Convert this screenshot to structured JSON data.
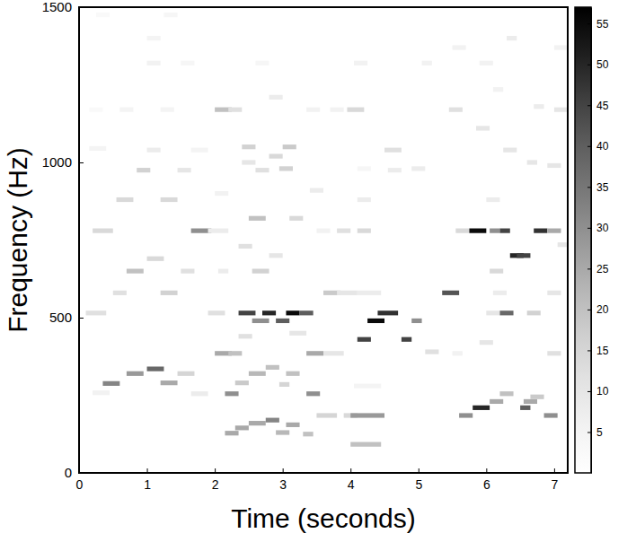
{
  "chart_data": {
    "type": "heatmap",
    "x_label": "Time (seconds)",
    "y_label": "Frequency (Hz)",
    "xlim": [
      0,
      7.2
    ],
    "ylim": [
      0,
      1500
    ],
    "xticks": [
      0,
      1,
      2,
      3,
      4,
      5,
      6,
      7
    ],
    "yticks": [
      0,
      500,
      1000,
      1500
    ],
    "freq_bin": 15,
    "colorbar": {
      "range": [
        0,
        57
      ],
      "ticks": [
        5,
        10,
        15,
        20,
        25,
        30,
        35,
        40,
        45,
        50,
        55
      ]
    },
    "cells": [
      [
        0.2,
        0.45,
        258,
        6
      ],
      [
        0.1,
        0.4,
        515,
        12
      ],
      [
        0.2,
        0.5,
        780,
        14
      ],
      [
        0.15,
        0.4,
        1045,
        5
      ],
      [
        0.15,
        0.35,
        1170,
        3
      ],
      [
        0.25,
        0.45,
        1475,
        3
      ],
      [
        0.35,
        0.6,
        288,
        32
      ],
      [
        0.5,
        0.7,
        580,
        12
      ],
      [
        0.55,
        0.8,
        880,
        14
      ],
      [
        0.6,
        0.8,
        1170,
        5
      ],
      [
        0.7,
        0.95,
        320,
        28
      ],
      [
        0.7,
        0.95,
        650,
        20
      ],
      [
        0.85,
        1.05,
        975,
        16
      ],
      [
        1.0,
        1.25,
        335,
        38
      ],
      [
        1.0,
        1.25,
        690,
        14
      ],
      [
        1.0,
        1.2,
        1040,
        8
      ],
      [
        1.0,
        1.2,
        1320,
        6
      ],
      [
        1.0,
        1.2,
        1400,
        5
      ],
      [
        1.2,
        1.45,
        290,
        25
      ],
      [
        1.2,
        1.45,
        580,
        16
      ],
      [
        1.2,
        1.45,
        880,
        14
      ],
      [
        1.2,
        1.4,
        1170,
        5
      ],
      [
        1.25,
        1.45,
        1475,
        4
      ],
      [
        1.45,
        1.7,
        320,
        15
      ],
      [
        1.5,
        1.7,
        650,
        12
      ],
      [
        1.45,
        1.65,
        975,
        10
      ],
      [
        1.5,
        1.7,
        1320,
        4
      ],
      [
        1.65,
        1.9,
        255,
        8
      ],
      [
        1.65,
        1.95,
        780,
        30
      ],
      [
        1.9,
        2.2,
        780,
        8
      ],
      [
        1.65,
        1.9,
        1040,
        5
      ],
      [
        2.0,
        2.25,
        385,
        25
      ],
      [
        2.0,
        2.25,
        1170,
        20
      ],
      [
        2.05,
        2.2,
        650,
        8
      ],
      [
        1.9,
        2.15,
        515,
        12
      ],
      [
        2.0,
        2.2,
        900,
        6
      ],
      [
        2.2,
        2.4,
        385,
        20
      ],
      [
        2.2,
        2.4,
        1170,
        12
      ],
      [
        2.15,
        2.35,
        255,
        30
      ],
      [
        2.15,
        2.35,
        128,
        25
      ],
      [
        2.3,
        2.5,
        145,
        25
      ],
      [
        2.3,
        2.5,
        290,
        18
      ],
      [
        2.35,
        2.6,
        515,
        45
      ],
      [
        2.35,
        2.55,
        440,
        12
      ],
      [
        2.35,
        2.55,
        730,
        12
      ],
      [
        2.4,
        2.6,
        1000,
        10
      ],
      [
        2.4,
        2.6,
        1050,
        16
      ],
      [
        2.5,
        2.75,
        160,
        25
      ],
      [
        2.5,
        2.75,
        320,
        22
      ],
      [
        2.55,
        2.8,
        490,
        30
      ],
      [
        2.55,
        2.8,
        650,
        16
      ],
      [
        2.5,
        2.75,
        820,
        20
      ],
      [
        2.6,
        2.8,
        975,
        12
      ],
      [
        2.6,
        2.8,
        1320,
        4
      ],
      [
        2.7,
        2.9,
        515,
        50
      ],
      [
        2.75,
        2.95,
        170,
        32
      ],
      [
        2.75,
        2.95,
        340,
        20
      ],
      [
        2.8,
        3.0,
        1020,
        14
      ],
      [
        2.8,
        3.0,
        1210,
        8
      ],
      [
        2.8,
        3.0,
        700,
        10
      ],
      [
        2.9,
        3.1,
        490,
        40
      ],
      [
        2.9,
        3.1,
        130,
        22
      ],
      [
        2.95,
        3.1,
        285,
        15
      ],
      [
        2.95,
        3.15,
        980,
        16
      ],
      [
        3.0,
        3.2,
        1050,
        18
      ],
      [
        3.05,
        3.25,
        515,
        55
      ],
      [
        3.05,
        3.25,
        155,
        25
      ],
      [
        3.05,
        3.25,
        320,
        20
      ],
      [
        3.1,
        3.3,
        820,
        14
      ],
      [
        3.1,
        3.35,
        450,
        10
      ],
      [
        3.25,
        3.45,
        515,
        40
      ],
      [
        3.3,
        3.45,
        125,
        20
      ],
      [
        3.35,
        3.55,
        255,
        30
      ],
      [
        3.35,
        3.6,
        385,
        25
      ],
      [
        3.4,
        3.6,
        910,
        8
      ],
      [
        3.35,
        3.55,
        1170,
        6
      ],
      [
        3.5,
        3.7,
        780,
        6
      ],
      [
        3.5,
        3.8,
        185,
        15
      ],
      [
        3.6,
        3.9,
        385,
        10
      ],
      [
        3.6,
        3.85,
        580,
        18
      ],
      [
        3.7,
        3.9,
        1170,
        6
      ],
      [
        3.8,
        4.1,
        580,
        10
      ],
      [
        3.8,
        4.0,
        780,
        12
      ],
      [
        3.9,
        4.1,
        185,
        14
      ],
      [
        3.95,
        4.2,
        1170,
        14
      ],
      [
        4.0,
        4.5,
        185,
        28
      ],
      [
        4.0,
        4.45,
        92,
        20
      ],
      [
        4.05,
        4.45,
        280,
        5
      ],
      [
        4.1,
        4.45,
        580,
        8
      ],
      [
        4.1,
        4.3,
        880,
        8
      ],
      [
        4.05,
        4.25,
        1320,
        6
      ],
      [
        4.1,
        4.3,
        780,
        14
      ],
      [
        4.1,
        4.3,
        430,
        45
      ],
      [
        4.1,
        4.3,
        980,
        4
      ],
      [
        4.25,
        4.5,
        490,
        55
      ],
      [
        4.4,
        4.7,
        515,
        48
      ],
      [
        4.5,
        4.75,
        1040,
        12
      ],
      [
        4.55,
        4.75,
        975,
        8
      ],
      [
        4.75,
        4.9,
        430,
        45
      ],
      [
        4.9,
        5.05,
        490,
        30
      ],
      [
        4.9,
        5.1,
        980,
        8
      ],
      [
        5.05,
        5.2,
        1320,
        6
      ],
      [
        5.1,
        5.3,
        390,
        12
      ],
      [
        5.35,
        5.6,
        580,
        42
      ],
      [
        5.45,
        5.65,
        1170,
        12
      ],
      [
        5.5,
        5.65,
        385,
        6
      ],
      [
        5.55,
        5.75,
        780,
        14
      ],
      [
        5.6,
        5.8,
        185,
        30
      ],
      [
        5.5,
        5.7,
        1370,
        6
      ],
      [
        5.75,
        6.0,
        780,
        55
      ],
      [
        5.8,
        6.05,
        210,
        50
      ],
      [
        5.85,
        6.05,
        1110,
        10
      ],
      [
        5.9,
        6.1,
        420,
        10
      ],
      [
        5.9,
        6.1,
        1320,
        6
      ],
      [
        6.0,
        6.2,
        515,
        10
      ],
      [
        6.05,
        6.25,
        230,
        25
      ],
      [
        6.05,
        6.2,
        780,
        30
      ],
      [
        6.05,
        6.25,
        650,
        14
      ],
      [
        6.1,
        6.25,
        1235,
        6
      ],
      [
        6.2,
        6.4,
        255,
        20
      ],
      [
        6.2,
        6.35,
        780,
        45
      ],
      [
        6.2,
        6.4,
        515,
        38
      ],
      [
        6.25,
        6.45,
        1040,
        10
      ],
      [
        6.3,
        6.45,
        1400,
        8
      ],
      [
        6.35,
        6.55,
        700,
        50
      ],
      [
        6.45,
        6.65,
        700,
        45
      ],
      [
        6.5,
        6.65,
        210,
        40
      ],
      [
        6.55,
        6.75,
        230,
        25
      ],
      [
        6.6,
        6.75,
        1000,
        10
      ],
      [
        6.7,
        6.9,
        780,
        48
      ],
      [
        6.65,
        6.85,
        245,
        18
      ],
      [
        6.6,
        6.8,
        515,
        16
      ],
      [
        6.7,
        6.85,
        1180,
        8
      ],
      [
        6.85,
        7.05,
        185,
        30
      ],
      [
        6.9,
        7.1,
        780,
        25
      ],
      [
        6.9,
        7.1,
        580,
        10
      ],
      [
        6.9,
        7.1,
        990,
        10
      ],
      [
        6.9,
        7.1,
        385,
        12
      ],
      [
        7.0,
        7.2,
        1370,
        6
      ],
      [
        7.0,
        7.2,
        1170,
        10
      ],
      [
        7.05,
        7.2,
        735,
        10
      ],
      [
        6.1,
        6.3,
        580,
        8
      ],
      [
        6.0,
        6.2,
        880,
        8
      ]
    ]
  }
}
